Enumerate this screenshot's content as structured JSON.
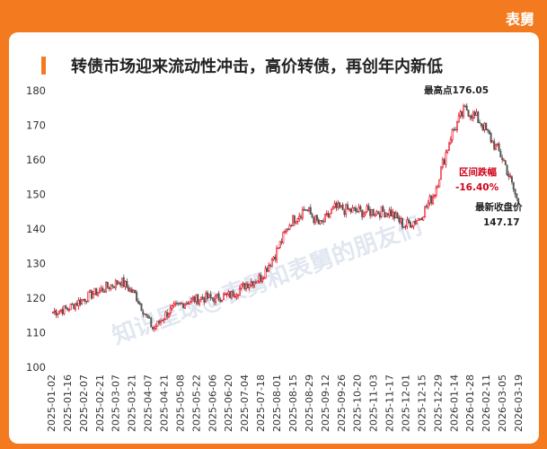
{
  "brand": "表舅",
  "watermark": "知识星球@表舅和表舅的朋友们",
  "chart_data": {
    "type": "candlestick",
    "title": "转债市场迎来流动性冲击，高价转债，再创年内新低",
    "ylim": [
      100,
      180
    ],
    "yticks": [
      100,
      110,
      120,
      130,
      140,
      150,
      160,
      170,
      180
    ],
    "xlabels": [
      "2025-01-02",
      "2025-01-16",
      "2025-02-07",
      "2025-02-21",
      "2025-03-07",
      "2025-03-21",
      "2025-04-07",
      "2025-04-21",
      "2025-05-08",
      "2025-05-22",
      "2025-06-06",
      "2025-06-20",
      "2025-07-04",
      "2025-07-18",
      "2025-08-01",
      "2025-08-15",
      "2025-08-29",
      "2025-09-12",
      "2025-09-26",
      "2025-10-20",
      "2025-11-03",
      "2025-11-17",
      "2025-12-01",
      "2025-12-15",
      "2025-12-29",
      "2026-01-14",
      "2026-01-28",
      "2026-02-11",
      "2026-03-05",
      "2026-03-19"
    ],
    "anchors": [
      {
        "x": "2025-01-02",
        "y": 116
      },
      {
        "x": "2025-01-16",
        "y": 117
      },
      {
        "x": "2025-02-07",
        "y": 121
      },
      {
        "x": "2025-02-21",
        "y": 123
      },
      {
        "x": "2025-03-07",
        "y": 125
      },
      {
        "x": "2025-03-21",
        "y": 121
      },
      {
        "x": "2025-04-07",
        "y": 111
      },
      {
        "x": "2025-04-21",
        "y": 116
      },
      {
        "x": "2025-05-08",
        "y": 119
      },
      {
        "x": "2025-05-22",
        "y": 120
      },
      {
        "x": "2025-06-06",
        "y": 120
      },
      {
        "x": "2025-06-20",
        "y": 121
      },
      {
        "x": "2025-07-04",
        "y": 124
      },
      {
        "x": "2025-07-18",
        "y": 126
      },
      {
        "x": "2025-08-01",
        "y": 133
      },
      {
        "x": "2025-08-15",
        "y": 142
      },
      {
        "x": "2025-08-29",
        "y": 146
      },
      {
        "x": "2025-09-12",
        "y": 141
      },
      {
        "x": "2025-09-26",
        "y": 146
      },
      {
        "x": "2025-10-20",
        "y": 145
      },
      {
        "x": "2025-11-03",
        "y": 145
      },
      {
        "x": "2025-11-17",
        "y": 145
      },
      {
        "x": "2025-12-01",
        "y": 141
      },
      {
        "x": "2025-12-15",
        "y": 143
      },
      {
        "x": "2025-12-29",
        "y": 150
      },
      {
        "x": "2026-01-14",
        "y": 167
      },
      {
        "x": "2026-01-28",
        "y": 175
      },
      {
        "x": "2026-02-11",
        "y": 171
      },
      {
        "x": "2026-03-05",
        "y": 160
      },
      {
        "x": "2026-03-19",
        "y": 147.17
      }
    ],
    "annotations": {
      "high_label": "最高点176.05",
      "range_label": "区间跌幅",
      "range_value": "-16.40%",
      "close_label": "最新收盘价",
      "close_value": "147.17"
    },
    "colors": {
      "up": "#e60012",
      "down": "#555555",
      "accent": "#f47a1f",
      "ann_red": "#d0021b"
    }
  }
}
